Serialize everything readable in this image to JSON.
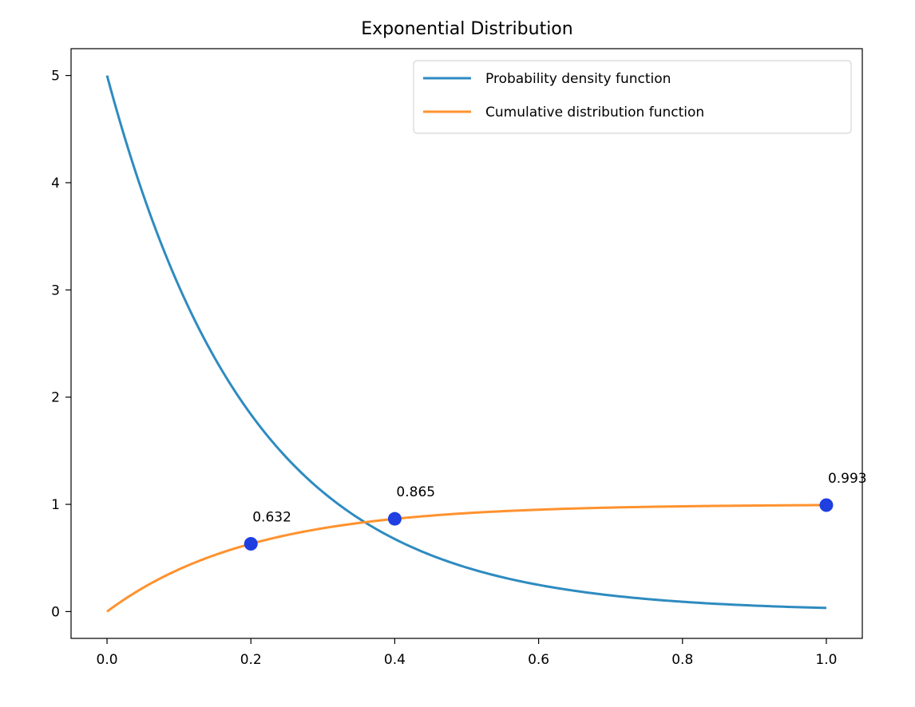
{
  "chart_data": {
    "type": "line",
    "title": "Exponential Distribution",
    "xlabel": "",
    "ylabel": "",
    "xlim": [
      -0.05,
      1.05
    ],
    "ylim": [
      -0.25,
      5.25
    ],
    "grid": false,
    "legend_position": "top-right",
    "x_ticks": [
      0.0,
      0.2,
      0.4,
      0.6,
      0.8,
      1.0
    ],
    "x_tick_labels": [
      "0.0",
      "0.2",
      "0.4",
      "0.6",
      "0.8",
      "1.0"
    ],
    "y_ticks": [
      0,
      1,
      2,
      3,
      4,
      5
    ],
    "y_tick_labels": [
      "0",
      "1",
      "2",
      "3",
      "4",
      "5"
    ],
    "rate": 5,
    "x_range": [
      0.0,
      1.0
    ],
    "series": [
      {
        "name": "Probability density function",
        "function": "pdf",
        "color": "#2e8bc0",
        "x": [
          0.0,
          0.05,
          0.1,
          0.15,
          0.2,
          0.25,
          0.3,
          0.35,
          0.4,
          0.45,
          0.5,
          0.55,
          0.6,
          0.65,
          0.7,
          0.75,
          0.8,
          0.85,
          0.9,
          0.95,
          1.0
        ],
        "y": [
          5.0,
          3.894,
          3.033,
          2.362,
          1.839,
          1.433,
          1.116,
          0.869,
          0.677,
          0.527,
          0.41,
          0.32,
          0.249,
          0.194,
          0.151,
          0.118,
          0.092,
          0.071,
          0.056,
          0.043,
          0.034
        ]
      },
      {
        "name": "Cumulative distribution function",
        "function": "cdf",
        "color": "#ff922e",
        "x": [
          0.0,
          0.05,
          0.1,
          0.15,
          0.2,
          0.25,
          0.3,
          0.35,
          0.4,
          0.45,
          0.5,
          0.55,
          0.6,
          0.65,
          0.7,
          0.75,
          0.8,
          0.85,
          0.9,
          0.95,
          1.0
        ],
        "y": [
          0.0,
          0.221,
          0.393,
          0.528,
          0.632,
          0.713,
          0.777,
          0.826,
          0.865,
          0.895,
          0.918,
          0.936,
          0.95,
          0.961,
          0.97,
          0.976,
          0.982,
          0.986,
          0.989,
          0.991,
          0.993
        ]
      }
    ],
    "points": {
      "color": "#1f3fe0",
      "x": [
        0.2,
        0.4,
        1.0
      ],
      "y": [
        0.632,
        0.865,
        0.993
      ],
      "labels": [
        "0.632",
        "0.865",
        "0.993"
      ]
    }
  }
}
